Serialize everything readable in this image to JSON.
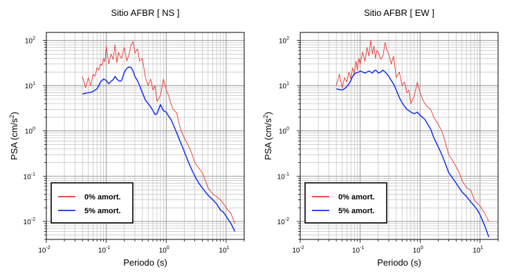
{
  "colors": {
    "red": "#e8342c",
    "blue": "#1030e8"
  },
  "chart_data": [
    {
      "type": "line",
      "title": "Sitio AFBR [ NS ]",
      "xlabel": "Periodo (s)",
      "ylabel_main": "PSA (cm/s",
      "ylabel_exp": "2",
      "ylabel_end": ")",
      "xscale": "log",
      "yscale": "log",
      "xlim": [
        0.01,
        20
      ],
      "ylim": [
        0.004,
        150
      ],
      "grid": true,
      "legend_position": "bottom-left",
      "x_ticks": [
        {
          "value": 0.01,
          "base": "10",
          "exp": "-2"
        },
        {
          "value": 0.1,
          "base": "10",
          "exp": "-1"
        },
        {
          "value": 1,
          "base": "10",
          "exp": "0"
        },
        {
          "value": 10,
          "base": "10",
          "exp": "1"
        }
      ],
      "y_ticks": [
        {
          "value": 0.01,
          "base": "10",
          "exp": "-2"
        },
        {
          "value": 0.1,
          "base": "10",
          "exp": "-1"
        },
        {
          "value": 1,
          "base": "10",
          "exp": "0"
        },
        {
          "value": 10,
          "base": "10",
          "exp": "1"
        },
        {
          "value": 100,
          "base": "10",
          "exp": "2"
        }
      ],
      "x": [
        0.04,
        0.045,
        0.05,
        0.055,
        0.06,
        0.065,
        0.07,
        0.075,
        0.08,
        0.085,
        0.09,
        0.095,
        0.1,
        0.11,
        0.12,
        0.13,
        0.14,
        0.15,
        0.16,
        0.17,
        0.18,
        0.19,
        0.2,
        0.22,
        0.24,
        0.26,
        0.28,
        0.3,
        0.33,
        0.36,
        0.4,
        0.45,
        0.5,
        0.55,
        0.6,
        0.65,
        0.7,
        0.8,
        0.9,
        1.0,
        1.1,
        1.2,
        1.3,
        1.5,
        1.7,
        2.0,
        2.3,
        2.6,
        3.0,
        3.5,
        4.0,
        4.5,
        5.0,
        6.0,
        7.0,
        8.0,
        9.0,
        10.0,
        12.0,
        14.0
      ],
      "series": [
        {
          "name": "0% amort.",
          "color": "#e8342c",
          "values": [
            16,
            9,
            15,
            10,
            18,
            16,
            25,
            22,
            30,
            28,
            40,
            34,
            75,
            30,
            50,
            38,
            80,
            32,
            55,
            45,
            40,
            55,
            70,
            35,
            50,
            80,
            95,
            52,
            65,
            35,
            40,
            15,
            10,
            14,
            8,
            10,
            4.5,
            6,
            14,
            8,
            6,
            4,
            3,
            2.5,
            1.2,
            0.7,
            0.5,
            0.35,
            0.2,
            0.15,
            0.12,
            0.08,
            0.055,
            0.04,
            0.035,
            0.03,
            0.025,
            0.02,
            0.015,
            0.009
          ]
        },
        {
          "name": "5% amort.",
          "color": "#1030e8",
          "values": [
            6.5,
            6.8,
            7,
            7.1,
            7.4,
            8,
            8.5,
            10,
            12,
            13,
            14,
            13.5,
            13,
            11,
            12.5,
            13.5,
            16,
            14,
            13,
            12.5,
            13,
            16,
            20,
            24,
            26,
            25,
            21,
            16,
            13,
            10,
            7,
            4.8,
            4,
            3.4,
            2.8,
            2.3,
            2.4,
            3.8,
            2.8,
            2.6,
            2.1,
            1.8,
            1.4,
            0.9,
            0.6,
            0.35,
            0.22,
            0.15,
            0.1,
            0.07,
            0.055,
            0.045,
            0.038,
            0.03,
            0.024,
            0.018,
            0.016,
            0.013,
            0.009,
            0.006
          ]
        }
      ]
    },
    {
      "type": "line",
      "title": "Sitio AFBR [ EW ]",
      "xlabel": "Periodo (s)",
      "ylabel_main": "PSA (cm/s",
      "ylabel_exp": "2",
      "ylabel_end": ")",
      "xscale": "log",
      "yscale": "log",
      "xlim": [
        0.01,
        20
      ],
      "ylim": [
        0.004,
        150
      ],
      "grid": true,
      "legend_position": "bottom-left",
      "x_ticks": [
        {
          "value": 0.01,
          "base": "10",
          "exp": "-2"
        },
        {
          "value": 0.1,
          "base": "10",
          "exp": "-1"
        },
        {
          "value": 1,
          "base": "10",
          "exp": "0"
        },
        {
          "value": 10,
          "base": "10",
          "exp": "1"
        }
      ],
      "y_ticks": [
        {
          "value": 0.01,
          "base": "10",
          "exp": "-2"
        },
        {
          "value": 0.1,
          "base": "10",
          "exp": "-1"
        },
        {
          "value": 1,
          "base": "10",
          "exp": "0"
        },
        {
          "value": 10,
          "base": "10",
          "exp": "1"
        },
        {
          "value": 100,
          "base": "10",
          "exp": "2"
        }
      ],
      "x": [
        0.04,
        0.045,
        0.05,
        0.055,
        0.06,
        0.065,
        0.07,
        0.075,
        0.08,
        0.085,
        0.09,
        0.095,
        0.1,
        0.11,
        0.12,
        0.13,
        0.14,
        0.15,
        0.16,
        0.17,
        0.18,
        0.19,
        0.2,
        0.22,
        0.24,
        0.26,
        0.28,
        0.3,
        0.33,
        0.36,
        0.4,
        0.45,
        0.5,
        0.55,
        0.6,
        0.65,
        0.7,
        0.8,
        0.9,
        1.0,
        1.1,
        1.2,
        1.3,
        1.5,
        1.7,
        2.0,
        2.3,
        2.6,
        3.0,
        3.5,
        4.0,
        4.5,
        5.0,
        6.0,
        7.0,
        8.0,
        9.0,
        10.0,
        12.0,
        14.0
      ],
      "series": [
        {
          "name": "0% amort.",
          "color": "#e8342c",
          "values": [
            10,
            18,
            9,
            15,
            12,
            20,
            14,
            25,
            18,
            35,
            22,
            40,
            30,
            55,
            35,
            70,
            45,
            100,
            50,
            75,
            40,
            60,
            55,
            38,
            45,
            90,
            60,
            50,
            30,
            45,
            15,
            20,
            10,
            12,
            7,
            8,
            4,
            6,
            12,
            7,
            5,
            4,
            3.5,
            3,
            2,
            1.4,
            1,
            0.6,
            0.3,
            0.22,
            0.16,
            0.12,
            0.08,
            0.055,
            0.05,
            0.03,
            0.025,
            0.022,
            0.015,
            0.01
          ]
        },
        {
          "name": "5% amort.",
          "color": "#1030e8",
          "values": [
            8.5,
            8.2,
            8,
            8.6,
            9.5,
            11,
            13,
            16,
            18,
            19,
            19.5,
            20,
            21,
            20,
            19,
            20,
            21,
            20,
            19,
            21,
            22,
            21,
            19,
            20,
            22,
            20,
            18,
            16,
            13,
            11,
            8,
            5.5,
            4.2,
            3.5,
            3,
            2.8,
            2.6,
            2.4,
            2.6,
            2.2,
            2,
            1.8,
            1.5,
            1.1,
            0.7,
            0.45,
            0.3,
            0.2,
            0.12,
            0.09,
            0.07,
            0.055,
            0.045,
            0.035,
            0.027,
            0.022,
            0.018,
            0.014,
            0.008,
            0.0045
          ]
        }
      ]
    }
  ]
}
